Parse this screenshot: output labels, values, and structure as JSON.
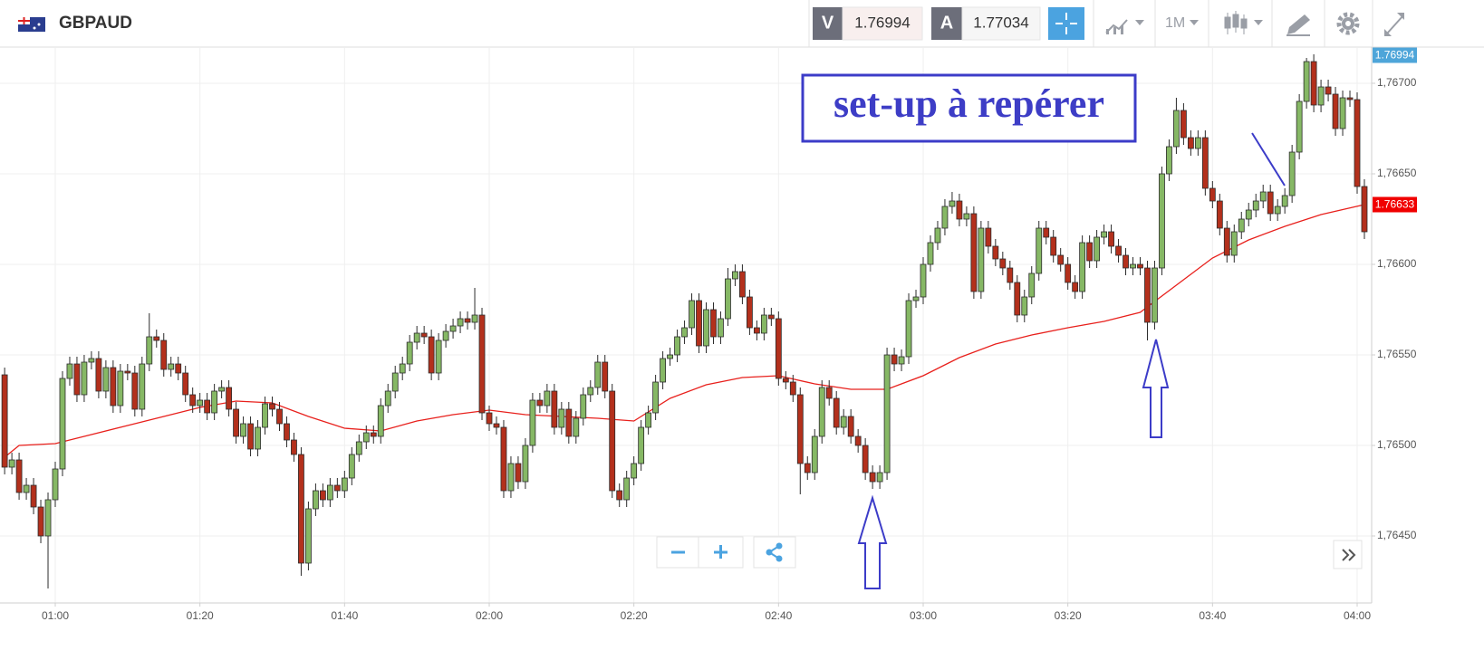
{
  "header": {
    "symbol": "GBPAUD",
    "bid_label": "V",
    "bid": 1.76994,
    "ask_label": "A",
    "ask": 1.77034,
    "timeframe": "1M"
  },
  "chart_data": {
    "type": "candlestick",
    "annotation": "set-up à repérer",
    "up_color": "#86b865",
    "down_color": "#b3301c",
    "x": [
      "00:53",
      "00:54",
      "00:55",
      "00:56",
      "00:57",
      "00:58",
      "00:59",
      "01:00",
      "01:01",
      "01:02",
      "01:03",
      "01:04",
      "01:05",
      "01:06",
      "01:07",
      "01:08",
      "01:09",
      "01:10",
      "01:11",
      "01:12",
      "01:13",
      "01:14",
      "01:15",
      "01:16",
      "01:17",
      "01:18",
      "01:19",
      "01:20",
      "01:21",
      "01:22",
      "01:23",
      "01:24",
      "01:25",
      "01:26",
      "01:27",
      "01:28",
      "01:29",
      "01:30",
      "01:31",
      "01:32",
      "01:33",
      "01:34",
      "01:35",
      "01:36",
      "01:37",
      "01:38",
      "01:39",
      "01:40",
      "01:41",
      "01:42",
      "01:43",
      "01:44",
      "01:45",
      "01:46",
      "01:47",
      "01:48",
      "01:49",
      "01:50",
      "01:51",
      "01:52",
      "01:53",
      "01:54",
      "01:55",
      "01:56",
      "01:57",
      "01:58",
      "01:59",
      "02:00",
      "02:01",
      "02:02",
      "02:03",
      "02:04",
      "02:05",
      "02:06",
      "02:07",
      "02:08",
      "02:09",
      "02:10",
      "02:11",
      "02:12",
      "02:13",
      "02:14",
      "02:15",
      "02:16",
      "02:17",
      "02:18",
      "02:19",
      "02:20",
      "02:21",
      "02:22",
      "02:23",
      "02:24",
      "02:25",
      "02:26",
      "02:27",
      "02:28",
      "02:29",
      "02:30",
      "02:31",
      "02:32",
      "02:33",
      "02:34",
      "02:35",
      "02:36",
      "02:37",
      "02:38",
      "02:39",
      "02:40",
      "02:41",
      "02:42",
      "02:43",
      "02:44",
      "02:45",
      "02:46",
      "02:47",
      "02:48",
      "02:49",
      "02:50",
      "02:51",
      "02:52",
      "02:53",
      "02:54",
      "02:55",
      "02:56",
      "02:57",
      "02:58",
      "02:59",
      "03:00",
      "03:01",
      "03:02",
      "03:03",
      "03:04",
      "03:05",
      "03:06",
      "03:07",
      "03:08",
      "03:09",
      "03:10",
      "03:11",
      "03:12",
      "03:13",
      "03:14",
      "03:15",
      "03:16",
      "03:17",
      "03:18",
      "03:19",
      "03:20",
      "03:21",
      "03:22",
      "03:23",
      "03:24",
      "03:25",
      "03:26",
      "03:27",
      "03:28",
      "03:29",
      "03:30",
      "03:31",
      "03:32",
      "03:33",
      "03:34",
      "03:35",
      "03:36",
      "03:37",
      "03:38",
      "03:39",
      "03:40",
      "03:41",
      "03:42",
      "03:43",
      "03:44",
      "03:45",
      "03:46",
      "03:47",
      "03:48",
      "03:49",
      "03:50",
      "03:51",
      "03:52",
      "03:53",
      "03:54",
      "03:55",
      "03:56",
      "03:57",
      "03:58",
      "03:59",
      "04:00",
      "04:01"
    ],
    "open": [
      1.76539,
      1.76488,
      1.76492,
      1.76474,
      1.76478,
      1.76466,
      1.7645,
      1.7647,
      1.76487,
      1.76537,
      1.76545,
      1.76528,
      1.76546,
      1.76548,
      1.7653,
      1.76543,
      1.76522,
      1.76541,
      1.7654,
      1.7652,
      1.76545,
      1.7656,
      1.76558,
      1.76542,
      1.76545,
      1.7654,
      1.76528,
      1.76522,
      1.76525,
      1.76518,
      1.7653,
      1.76532,
      1.7652,
      1.76505,
      1.76512,
      1.76498,
      1.7651,
      1.76523,
      1.7652,
      1.76512,
      1.76503,
      1.76495,
      1.76435,
      1.76465,
      1.76475,
      1.7647,
      1.76478,
      1.76475,
      1.76482,
      1.76495,
      1.76502,
      1.76507,
      1.76505,
      1.76522,
      1.7653,
      1.7654,
      1.76545,
      1.76557,
      1.76562,
      1.7656,
      1.7654,
      1.76558,
      1.76563,
      1.76566,
      1.7657,
      1.76568,
      1.76572,
      1.76518,
      1.76512,
      1.7651,
      1.76475,
      1.7649,
      1.7648,
      1.765,
      1.76525,
      1.76522,
      1.7653,
      1.7651,
      1.7652,
      1.76505,
      1.76515,
      1.76528,
      1.76532,
      1.76546,
      1.7653,
      1.76475,
      1.7647,
      1.76482,
      1.7649,
      1.7651,
      1.76518,
      1.76535,
      1.76548,
      1.7655,
      1.7656,
      1.76565,
      1.7658,
      1.76555,
      1.76575,
      1.7656,
      1.7657,
      1.76592,
      1.76596,
      1.76582,
      1.76565,
      1.76562,
      1.76572,
      1.7657,
      1.76537,
      1.76535,
      1.76528,
      1.7649,
      1.76485,
      1.76505,
      1.76532,
      1.76526,
      1.7651,
      1.76516,
      1.76505,
      1.765,
      1.76485,
      1.7648,
      1.76485,
      1.7655,
      1.76545,
      1.76549,
      1.7658,
      1.76582,
      1.766,
      1.76612,
      1.7662,
      1.76632,
      1.76635,
      1.76625,
      1.76628,
      1.76585,
      1.7662,
      1.7661,
      1.76603,
      1.76598,
      1.7659,
      1.76572,
      1.76582,
      1.76595,
      1.7662,
      1.76615,
      1.76605,
      1.766,
      1.7659,
      1.76585,
      1.76612,
      1.76602,
      1.76615,
      1.76618,
      1.7661,
      1.76605,
      1.76598,
      1.766,
      1.76598,
      1.76568,
      1.76598,
      1.7665,
      1.76665,
      1.76685,
      1.7667,
      1.76664,
      1.7667,
      1.76642,
      1.76635,
      1.7662,
      1.76605,
      1.76618,
      1.76625,
      1.7663,
      1.76635,
      1.7664,
      1.76628,
      1.76632,
      1.76638,
      1.76662,
      1.7669,
      1.76712,
      1.76688,
      1.76698,
      1.76694,
      1.76675,
      1.76692,
      1.76691,
      1.76643
    ],
    "high": [
      1.76543,
      1.76496,
      1.76496,
      1.76482,
      1.76482,
      1.7647,
      1.76474,
      1.76491,
      1.76541,
      1.76549,
      1.76549,
      1.7655,
      1.76552,
      1.76552,
      1.76547,
      1.76547,
      1.76545,
      1.76545,
      1.76544,
      1.76549,
      1.76573,
      1.76564,
      1.76562,
      1.76549,
      1.76549,
      1.76544,
      1.76532,
      1.76529,
      1.76529,
      1.76534,
      1.76536,
      1.76536,
      1.76524,
      1.76516,
      1.76516,
      1.76514,
      1.76527,
      1.76527,
      1.76524,
      1.76516,
      1.76507,
      1.76499,
      1.76469,
      1.76479,
      1.76479,
      1.76482,
      1.76482,
      1.76486,
      1.76499,
      1.76506,
      1.76511,
      1.76511,
      1.76526,
      1.76534,
      1.76544,
      1.76549,
      1.76561,
      1.76566,
      1.76566,
      1.76564,
      1.76562,
      1.76567,
      1.7657,
      1.76574,
      1.76574,
      1.76587,
      1.76576,
      1.76522,
      1.76516,
      1.76514,
      1.76494,
      1.76494,
      1.76504,
      1.76529,
      1.76529,
      1.76534,
      1.76534,
      1.76524,
      1.76524,
      1.76519,
      1.76532,
      1.76536,
      1.7655,
      1.7655,
      1.76534,
      1.76479,
      1.76486,
      1.76494,
      1.76514,
      1.76522,
      1.76539,
      1.76552,
      1.76554,
      1.76564,
      1.76569,
      1.76584,
      1.76584,
      1.76579,
      1.76579,
      1.76574,
      1.76598,
      1.766,
      1.766,
      1.76586,
      1.76569,
      1.76576,
      1.76576,
      1.76574,
      1.76541,
      1.76539,
      1.76532,
      1.76494,
      1.76509,
      1.76536,
      1.76536,
      1.7653,
      1.7652,
      1.7652,
      1.76509,
      1.76504,
      1.76489,
      1.76489,
      1.76554,
      1.76554,
      1.76553,
      1.76584,
      1.76586,
      1.76604,
      1.76616,
      1.76624,
      1.76636,
      1.7664,
      1.76639,
      1.76632,
      1.76632,
      1.76624,
      1.76624,
      1.76614,
      1.76607,
      1.76602,
      1.76594,
      1.76586,
      1.76599,
      1.76624,
      1.76624,
      1.76619,
      1.76609,
      1.76604,
      1.76594,
      1.76616,
      1.76616,
      1.76619,
      1.76622,
      1.76622,
      1.76614,
      1.76609,
      1.76604,
      1.76604,
      1.76602,
      1.76602,
      1.76654,
      1.76669,
      1.76692,
      1.76689,
      1.76674,
      1.76674,
      1.76674,
      1.76646,
      1.76639,
      1.76624,
      1.76622,
      1.76629,
      1.76634,
      1.76639,
      1.76644,
      1.76644,
      1.76636,
      1.76642,
      1.76666,
      1.76694,
      1.76714,
      1.76716,
      1.76702,
      1.76702,
      1.76698,
      1.76696,
      1.76696,
      1.76695,
      1.76647
    ],
    "low": [
      1.76484,
      1.76484,
      1.7647,
      1.7647,
      1.76462,
      1.76446,
      1.76421,
      1.76466,
      1.76483,
      1.76533,
      1.76524,
      1.76524,
      1.76542,
      1.76526,
      1.76526,
      1.76518,
      1.76518,
      1.76536,
      1.76516,
      1.76516,
      1.76541,
      1.76554,
      1.76538,
      1.76538,
      1.76536,
      1.76524,
      1.76518,
      1.76518,
      1.76514,
      1.76514,
      1.76526,
      1.76516,
      1.76501,
      1.76501,
      1.76494,
      1.76494,
      1.76506,
      1.76516,
      1.76508,
      1.76499,
      1.76491,
      1.76428,
      1.76431,
      1.76461,
      1.76466,
      1.76466,
      1.76471,
      1.76471,
      1.76478,
      1.76491,
      1.76498,
      1.76501,
      1.76501,
      1.76518,
      1.76526,
      1.76536,
      1.76541,
      1.76553,
      1.76556,
      1.76536,
      1.76536,
      1.76554,
      1.76559,
      1.76562,
      1.76564,
      1.76564,
      1.76514,
      1.76508,
      1.76506,
      1.76471,
      1.76471,
      1.76476,
      1.76476,
      1.76496,
      1.76518,
      1.76518,
      1.76506,
      1.76506,
      1.76501,
      1.76501,
      1.76511,
      1.76524,
      1.76528,
      1.76526,
      1.76471,
      1.76466,
      1.76466,
      1.76478,
      1.76486,
      1.76506,
      1.76514,
      1.76531,
      1.76544,
      1.76546,
      1.76556,
      1.76561,
      1.76551,
      1.76551,
      1.76556,
      1.76556,
      1.76566,
      1.76588,
      1.76578,
      1.76561,
      1.76558,
      1.76558,
      1.76566,
      1.76533,
      1.76531,
      1.76524,
      1.76473,
      1.76481,
      1.76481,
      1.76501,
      1.76522,
      1.76506,
      1.76506,
      1.76501,
      1.76496,
      1.76481,
      1.76476,
      1.76476,
      1.76481,
      1.76541,
      1.76541,
      1.76545,
      1.76576,
      1.76578,
      1.76596,
      1.76608,
      1.76616,
      1.76628,
      1.76621,
      1.76621,
      1.76581,
      1.76581,
      1.76606,
      1.76599,
      1.76594,
      1.76586,
      1.76568,
      1.76568,
      1.76578,
      1.76591,
      1.76611,
      1.76601,
      1.76596,
      1.76586,
      1.76581,
      1.76581,
      1.76598,
      1.76598,
      1.76611,
      1.76606,
      1.76601,
      1.76594,
      1.76594,
      1.76594,
      1.76558,
      1.76564,
      1.76594,
      1.76646,
      1.76661,
      1.76666,
      1.7666,
      1.7666,
      1.76638,
      1.76631,
      1.76616,
      1.76601,
      1.76601,
      1.76614,
      1.76621,
      1.76626,
      1.76631,
      1.76624,
      1.76624,
      1.76628,
      1.76634,
      1.76658,
      1.76686,
      1.76684,
      1.76684,
      1.7669,
      1.76671,
      1.76671,
      1.76687,
      1.76639,
      1.76614
    ],
    "close": [
      1.76488,
      1.76492,
      1.76474,
      1.76478,
      1.76466,
      1.7645,
      1.7647,
      1.76487,
      1.76537,
      1.76545,
      1.76528,
      1.76546,
      1.76548,
      1.7653,
      1.76543,
      1.76522,
      1.76541,
      1.7654,
      1.7652,
      1.76545,
      1.7656,
      1.76558,
      1.76542,
      1.76545,
      1.7654,
      1.76528,
      1.76522,
      1.76525,
      1.76518,
      1.7653,
      1.76532,
      1.7652,
      1.76505,
      1.76512,
      1.76498,
      1.7651,
      1.76523,
      1.7652,
      1.76512,
      1.76503,
      1.76495,
      1.76435,
      1.76465,
      1.76475,
      1.7647,
      1.76478,
      1.76475,
      1.76482,
      1.76495,
      1.76502,
      1.76507,
      1.76505,
      1.76522,
      1.7653,
      1.7654,
      1.76545,
      1.76557,
      1.76562,
      1.7656,
      1.7654,
      1.76558,
      1.76563,
      1.76566,
      1.7657,
      1.76568,
      1.76572,
      1.76518,
      1.76512,
      1.7651,
      1.76475,
      1.7649,
      1.7648,
      1.765,
      1.76525,
      1.76522,
      1.7653,
      1.7651,
      1.7652,
      1.76505,
      1.76515,
      1.76528,
      1.76532,
      1.76546,
      1.7653,
      1.76475,
      1.7647,
      1.76482,
      1.7649,
      1.7651,
      1.76518,
      1.76535,
      1.76548,
      1.7655,
      1.7656,
      1.76565,
      1.7658,
      1.76555,
      1.76575,
      1.7656,
      1.7657,
      1.76592,
      1.76596,
      1.76582,
      1.76565,
      1.76562,
      1.76572,
      1.7657,
      1.76537,
      1.76535,
      1.76528,
      1.7649,
      1.76485,
      1.76505,
      1.76532,
      1.76526,
      1.7651,
      1.76516,
      1.76505,
      1.765,
      1.76485,
      1.7648,
      1.76485,
      1.7655,
      1.76545,
      1.76549,
      1.7658,
      1.76582,
      1.766,
      1.76612,
      1.7662,
      1.76632,
      1.76635,
      1.76625,
      1.76628,
      1.76585,
      1.7662,
      1.7661,
      1.76603,
      1.76598,
      1.7659,
      1.76572,
      1.76582,
      1.76595,
      1.7662,
      1.76615,
      1.76605,
      1.766,
      1.7659,
      1.76585,
      1.76612,
      1.76602,
      1.76615,
      1.76618,
      1.7661,
      1.76605,
      1.76598,
      1.766,
      1.76598,
      1.76568,
      1.76598,
      1.7665,
      1.76665,
      1.76685,
      1.7667,
      1.76664,
      1.7667,
      1.76642,
      1.76635,
      1.7662,
      1.76605,
      1.76618,
      1.76625,
      1.7663,
      1.76635,
      1.7664,
      1.76628,
      1.76632,
      1.76638,
      1.76662,
      1.7669,
      1.76712,
      1.76688,
      1.76698,
      1.76694,
      1.76675,
      1.76692,
      1.76691,
      1.76643,
      1.76618
    ],
    "moving_average": {
      "color": "#e8201c",
      "x": [
        "00:53",
        "00:55",
        "01:00",
        "01:05",
        "01:10",
        "01:15",
        "01:20",
        "01:25",
        "01:30",
        "01:35",
        "01:40",
        "01:45",
        "01:50",
        "01:55",
        "02:00",
        "02:05",
        "02:10",
        "02:15",
        "02:20",
        "02:25",
        "02:30",
        "02:35",
        "02:40",
        "02:45",
        "02:50",
        "02:55",
        "03:00",
        "03:05",
        "03:10",
        "03:15",
        "03:20",
        "03:25",
        "03:30",
        "03:35",
        "03:40",
        "03:45",
        "03:50",
        "03:55",
        "04:01"
      ],
      "values": [
        1.764935,
        1.765,
        1.76501,
        1.76506,
        1.76511,
        1.76516,
        1.76521,
        1.765245,
        1.765235,
        1.76516,
        1.765095,
        1.76508,
        1.765135,
        1.76517,
        1.765195,
        1.76517,
        1.76516,
        1.76515,
        1.765135,
        1.76526,
        1.765335,
        1.765375,
        1.765385,
        1.76534,
        1.76531,
        1.76531,
        1.765385,
        1.765485,
        1.76556,
        1.76561,
        1.76565,
        1.765685,
        1.765735,
        1.765885,
        1.766035,
        1.766135,
        1.76621,
        1.766275,
        1.76633
      ]
    },
    "price_tags": [
      {
        "value": 1.76994,
        "color": "#4ea5d9"
      },
      {
        "value": 1.76633,
        "color": "#f00000"
      }
    ],
    "ylim": [
      1.76413,
      1.7672
    ],
    "yticks": [
      {
        "value": 1.7645,
        "label": "1,76450"
      },
      {
        "value": 1.765,
        "label": "1,76500"
      },
      {
        "value": 1.7655,
        "label": "1,76550"
      },
      {
        "value": 1.766,
        "label": "1,76600"
      },
      {
        "value": 1.7665,
        "label": "1,76650"
      },
      {
        "value": 1.767,
        "label": "1,76700"
      }
    ],
    "xticks": [
      "01:00",
      "01:20",
      "01:40",
      "02:00",
      "02:20",
      "02:40",
      "03:00",
      "03:20",
      "03:40",
      "04:00"
    ],
    "grid": true
  }
}
